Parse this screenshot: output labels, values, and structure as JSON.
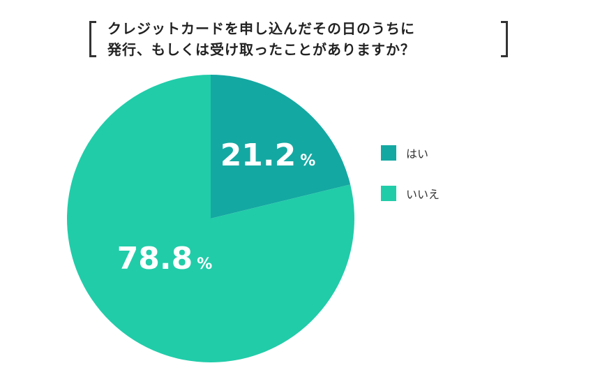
{
  "title": {
    "line1": "クレジットカードを申し込んだその日のうちに",
    "line2": "発行、もしくは受け取ったことがありますか？"
  },
  "chart_data": {
    "type": "pie",
    "categories": [
      "はい",
      "いいえ"
    ],
    "values": [
      21.2,
      78.8
    ],
    "unit": "%",
    "colors": [
      "#14a8a2",
      "#21cca9"
    ],
    "legend": "right",
    "start": "top, clockwise"
  }
}
